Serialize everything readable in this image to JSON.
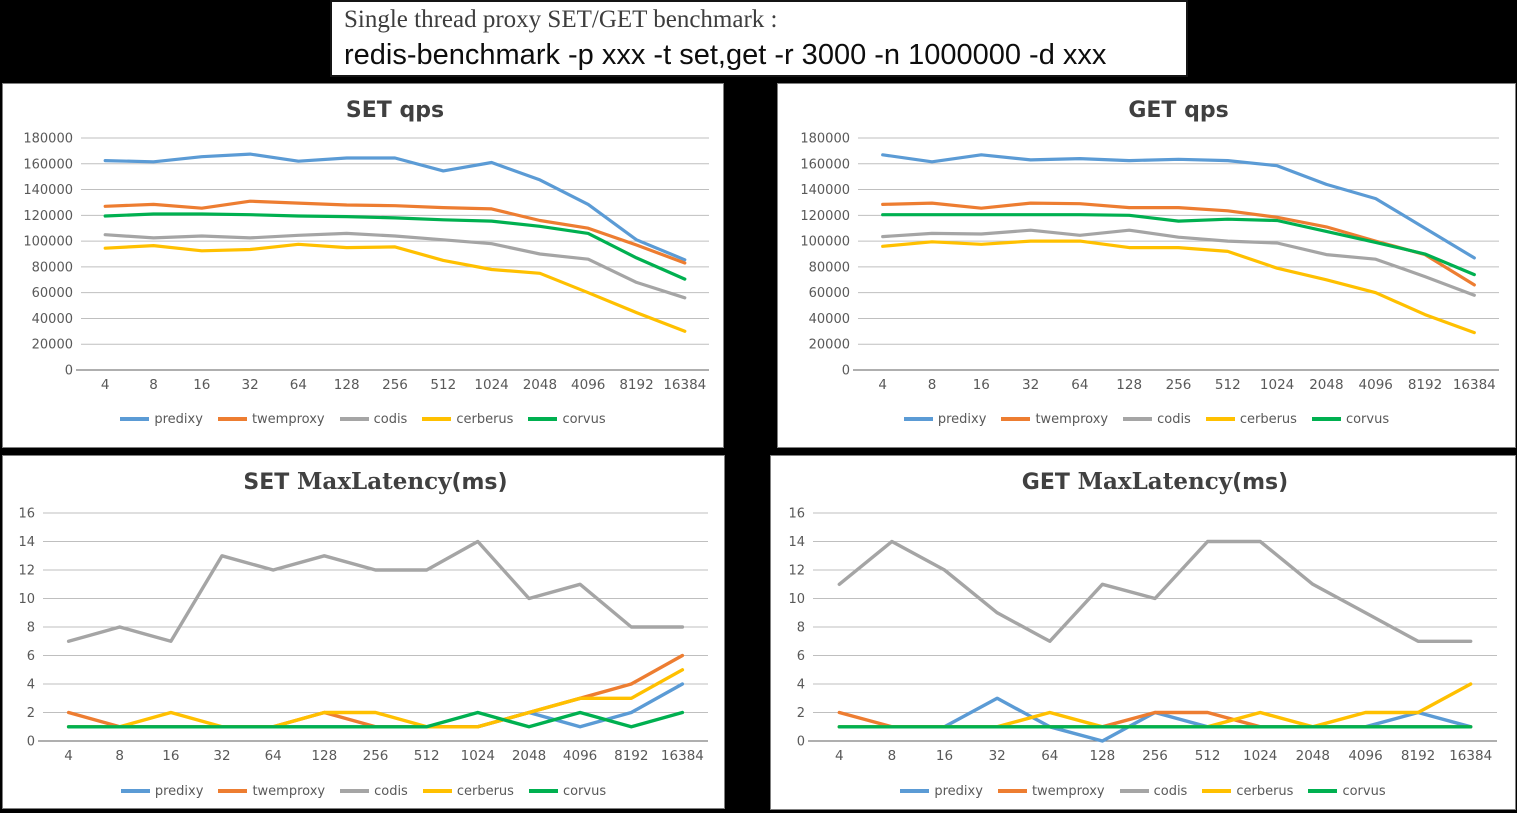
{
  "page": {
    "title_line1": "Single thread proxy SET/GET benchmark :",
    "title_line2": "redis-benchmark -p xxx -t set,get -r 3000 -n 1000000 -d xxx"
  },
  "colors": {
    "predixy": "#5B9BD5",
    "twemproxy": "#ED7D31",
    "codis": "#A5A5A5",
    "cerberus": "#FFC000",
    "corvus": "#00B050",
    "gridline": "#BFBFBF",
    "axis_line": "#7F7F7F",
    "label_text": "#595959",
    "chart_title_text": "#404040",
    "page_background": "#000000",
    "panel_background": "#FFFFFF"
  },
  "legend_entries": [
    "predixy",
    "twemproxy",
    "codis",
    "cerberus",
    "corvus"
  ],
  "chart_data": [
    {
      "id": "set-qps",
      "type": "line",
      "title_parts": [
        {
          "text": "SET  qps",
          "serif": false
        }
      ],
      "xlabel": "",
      "ylabel": "",
      "ylim": [
        0,
        180000
      ],
      "ytick_step": 20000,
      "grid": true,
      "legend_position": "bottom",
      "categories": [
        "4",
        "8",
        "16",
        "32",
        "64",
        "128",
        "256",
        "512",
        "1024",
        "2048",
        "4096",
        "8192",
        "16384"
      ],
      "series": [
        {
          "name": "predixy",
          "color": "#5B9BD5",
          "values": [
            162500,
            161500,
            165500,
            167500,
            162000,
            164500,
            164500,
            154500,
            161000,
            147500,
            128500,
            101000,
            85500
          ]
        },
        {
          "name": "twemproxy",
          "color": "#ED7D31",
          "values": [
            127000,
            128500,
            125500,
            131000,
            129500,
            128000,
            127500,
            126000,
            125000,
            116000,
            110000,
            97000,
            83000
          ]
        },
        {
          "name": "codis",
          "color": "#A5A5A5",
          "values": [
            105000,
            102500,
            104000,
            102500,
            104500,
            106000,
            104000,
            101000,
            98000,
            90000,
            86000,
            68000,
            56000
          ]
        },
        {
          "name": "cerberus",
          "color": "#FFC000",
          "values": [
            94500,
            96500,
            92500,
            93500,
            97500,
            95000,
            95500,
            85000,
            78000,
            75000,
            60000,
            44500,
            30000
          ]
        },
        {
          "name": "corvus",
          "color": "#00B050",
          "values": [
            119500,
            121000,
            121000,
            120500,
            119500,
            119000,
            118000,
            116500,
            115500,
            111500,
            106000,
            87000,
            70500
          ]
        }
      ]
    },
    {
      "id": "get-qps",
      "type": "line",
      "title_parts": [
        {
          "text": "GET  qps",
          "serif": false
        }
      ],
      "xlabel": "",
      "ylabel": "",
      "ylim": [
        0,
        180000
      ],
      "ytick_step": 20000,
      "grid": true,
      "legend_position": "bottom",
      "categories": [
        "4",
        "8",
        "16",
        "32",
        "64",
        "128",
        "256",
        "512",
        "1024",
        "2048",
        "4096",
        "8192",
        "16384"
      ],
      "series": [
        {
          "name": "predixy",
          "color": "#5B9BD5",
          "values": [
            167000,
            161500,
            167000,
            163000,
            164000,
            162500,
            163500,
            162500,
            158500,
            144000,
            133000,
            110000,
            87000
          ]
        },
        {
          "name": "twemproxy",
          "color": "#ED7D31",
          "values": [
            128500,
            129500,
            125500,
            129500,
            129000,
            126000,
            126000,
            123500,
            118500,
            111000,
            100000,
            89500,
            66000
          ]
        },
        {
          "name": "codis",
          "color": "#A5A5A5",
          "values": [
            103500,
            106000,
            105500,
            108500,
            104500,
            108500,
            103000,
            100000,
            98500,
            89500,
            86000,
            72500,
            58000
          ]
        },
        {
          "name": "cerberus",
          "color": "#FFC000",
          "values": [
            96000,
            99500,
            97500,
            100000,
            100000,
            95000,
            95000,
            92000,
            79000,
            70000,
            60000,
            43000,
            29000
          ]
        },
        {
          "name": "corvus",
          "color": "#00B050",
          "values": [
            120500,
            120500,
            120500,
            120500,
            120500,
            120000,
            115500,
            117000,
            116000,
            107500,
            99000,
            90000,
            74000
          ]
        }
      ]
    },
    {
      "id": "set-latency",
      "type": "line",
      "title_parts": [
        {
          "text": "SET ",
          "serif": false
        },
        {
          "text": "MaxLatency",
          "serif": true
        },
        {
          "text": "(ms)",
          "serif": false
        }
      ],
      "xlabel": "",
      "ylabel": "",
      "ylim": [
        0,
        16
      ],
      "ytick_step": 2,
      "grid": true,
      "legend_position": "bottom",
      "categories": [
        "4",
        "8",
        "16",
        "32",
        "64",
        "128",
        "256",
        "512",
        "1024",
        "2048",
        "4096",
        "8192",
        "16384"
      ],
      "series": [
        {
          "name": "predixy",
          "color": "#5B9BD5",
          "values": [
            1,
            1,
            1,
            1,
            1,
            1,
            1,
            1,
            1,
            2,
            1,
            2,
            4
          ]
        },
        {
          "name": "twemproxy",
          "color": "#ED7D31",
          "values": [
            2,
            1,
            1,
            1,
            1,
            2,
            1,
            1,
            1,
            2,
            3,
            4,
            6
          ]
        },
        {
          "name": "codis",
          "color": "#A5A5A5",
          "values": [
            7,
            8,
            7,
            13,
            12,
            13,
            12,
            12,
            14,
            10,
            11,
            8,
            8
          ]
        },
        {
          "name": "cerberus",
          "color": "#FFC000",
          "values": [
            1,
            1,
            2,
            1,
            1,
            2,
            2,
            1,
            1,
            2,
            3,
            3,
            5
          ]
        },
        {
          "name": "corvus",
          "color": "#00B050",
          "values": [
            1,
            1,
            1,
            1,
            1,
            1,
            1,
            1,
            2,
            1,
            2,
            1,
            2
          ]
        }
      ]
    },
    {
      "id": "get-latency",
      "type": "line",
      "title_parts": [
        {
          "text": "GET ",
          "serif": false
        },
        {
          "text": "MaxLatency",
          "serif": true
        },
        {
          "text": "(ms)",
          "serif": false
        }
      ],
      "xlabel": "",
      "ylabel": "",
      "ylim": [
        0,
        16
      ],
      "ytick_step": 2,
      "grid": true,
      "legend_position": "bottom",
      "categories": [
        "4",
        "8",
        "16",
        "32",
        "64",
        "128",
        "256",
        "512",
        "1024",
        "2048",
        "4096",
        "8192",
        "16384"
      ],
      "series": [
        {
          "name": "predixy",
          "color": "#5B9BD5",
          "values": [
            1,
            1,
            1,
            3,
            1,
            0,
            2,
            1,
            1,
            1,
            1,
            2,
            1
          ]
        },
        {
          "name": "twemproxy",
          "color": "#ED7D31",
          "values": [
            2,
            1,
            1,
            1,
            1,
            1,
            2,
            2,
            1,
            1,
            1,
            1,
            1
          ]
        },
        {
          "name": "codis",
          "color": "#A5A5A5",
          "values": [
            11,
            14,
            12,
            9,
            7,
            11,
            10,
            14,
            14,
            11,
            9,
            7,
            7
          ]
        },
        {
          "name": "cerberus",
          "color": "#FFC000",
          "values": [
            1,
            1,
            1,
            1,
            2,
            1,
            1,
            1,
            2,
            1,
            2,
            2,
            4
          ]
        },
        {
          "name": "corvus",
          "color": "#00B050",
          "values": [
            1,
            1,
            1,
            1,
            1,
            1,
            1,
            1,
            1,
            1,
            1,
            1,
            1
          ]
        }
      ]
    }
  ]
}
